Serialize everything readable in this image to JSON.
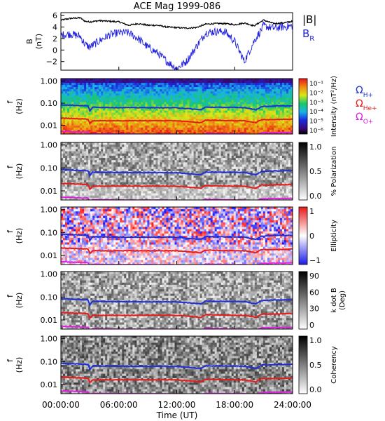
{
  "title": "ACE Mag 1999-086",
  "time_axis": {
    "xlabel": "Time (UT)",
    "ticks": [
      "00:00:00",
      "06:00:00",
      "12:00:00",
      "18:00:00",
      "24:00:00"
    ],
    "range_hours": [
      0,
      24
    ]
  },
  "colors": {
    "B_total": "#000000",
    "B_R": "#2222dd",
    "H_plus": "#1f2fd8",
    "He_plus": "#e81a1a",
    "O_plus": "#e020e0"
  },
  "panels": [
    {
      "id": "b-field",
      "ylabel_main": "B",
      "ylabel_unit": "(nT)",
      "legend": [
        {
          "main": "|B|",
          "sub": "",
          "color": "#000000"
        },
        {
          "main": "B",
          "sub": "R",
          "color": "#2222dd"
        }
      ]
    },
    {
      "id": "intensity",
      "ylabel_main": "f",
      "ylabel_unit": "(Hz)",
      "colorbar_label": "Intensity (nT²/Hz)",
      "colorbar_ticks": [
        "10⁻¹",
        "10⁻²",
        "10⁻³",
        "10⁻⁴",
        "10⁻⁵",
        "10⁻⁶"
      ],
      "legend": [
        {
          "main": "Ω",
          "sub": "H+",
          "color": "#1f2fd8"
        },
        {
          "main": "Ω",
          "sub": "He+",
          "color": "#e81a1a"
        },
        {
          "main": "Ω",
          "sub": "O+",
          "color": "#e020e0"
        }
      ]
    },
    {
      "id": "polarization",
      "ylabel_main": "f",
      "ylabel_unit": "(Hz)",
      "colorbar_label": "% Polarization",
      "colorbar_ticks": [
        "1.0",
        "0.5",
        "0.0"
      ]
    },
    {
      "id": "ellipticity",
      "ylabel_main": "f",
      "ylabel_unit": "(Hz)",
      "colorbar_label": "Ellipticity",
      "colorbar_ticks": [
        "1",
        "0",
        "−1"
      ]
    },
    {
      "id": "kdotb",
      "ylabel_main": "f",
      "ylabel_unit": "(Hz)",
      "colorbar_label": "k dot B",
      "colorbar_label2": "(Deg)",
      "colorbar_ticks": [
        "90",
        "60",
        "30",
        "0"
      ]
    },
    {
      "id": "coherency",
      "ylabel_main": "f",
      "ylabel_unit": "(Hz)",
      "colorbar_label": "Coherency",
      "colorbar_ticks": [
        "1.0",
        "0.5",
        "0.0"
      ]
    }
  ],
  "chart_data": {
    "type": "heatmap",
    "title": "ACE Mag 1999-086",
    "xlabel": "Time (UT)",
    "x_ticks": [
      "00:00:00",
      "06:00:00",
      "12:00:00",
      "18:00:00",
      "24:00:00"
    ],
    "b_panel": {
      "ylabel": "B (nT)",
      "ylim": [
        -3.5,
        6.5
      ],
      "yticks": [
        "6",
        "4",
        "2",
        "0",
        "−2"
      ],
      "series": [
        {
          "name": "|B|",
          "x_hours": [
            0,
            1,
            2,
            2.5,
            3,
            4,
            5,
            6,
            7,
            8,
            9,
            10,
            11,
            12,
            13,
            14,
            15,
            16,
            17,
            18,
            19,
            20,
            21,
            22,
            23,
            24
          ],
          "values": [
            5.2,
            5.5,
            5.6,
            5.0,
            4.9,
            5.1,
            5.0,
            4.9,
            4.3,
            4.6,
            4.3,
            4.3,
            4.0,
            3.9,
            3.8,
            3.9,
            4.5,
            4.6,
            4.6,
            4.4,
            4.7,
            4.2,
            5.2,
            4.6,
            4.7,
            5.0
          ]
        },
        {
          "name": "B_R",
          "x_hours": [
            0,
            1,
            2,
            2.5,
            3,
            4,
            5,
            6,
            7,
            8,
            9,
            10,
            11,
            12,
            13,
            14,
            15,
            16,
            17,
            18,
            19,
            20,
            21,
            22,
            23,
            24
          ],
          "values": [
            2.6,
            2.8,
            2.4,
            1.0,
            0.5,
            1.6,
            2.6,
            3.0,
            3.0,
            2.0,
            0.5,
            -0.5,
            -2.0,
            -3.2,
            -2.0,
            0.5,
            3.0,
            3.2,
            3.2,
            1.5,
            -2.0,
            1.5,
            4.2,
            3.8,
            4.0,
            4.2
          ]
        }
      ]
    },
    "freq_axis": {
      "ylabel": "f (Hz)",
      "scale": "log",
      "ylim": [
        0.004,
        1.3
      ],
      "yticks": [
        "1.00",
        "0.10",
        "0.01"
      ]
    },
    "gyrofrequency_lines": [
      {
        "name": "Ω_H+",
        "x_hours": [
          0,
          2.8,
          3.0,
          3.3,
          6,
          12,
          14.5,
          15,
          18,
          19,
          20.2,
          20.8,
          22,
          24
        ],
        "values": [
          0.085,
          0.075,
          0.045,
          0.065,
          0.063,
          0.062,
          0.05,
          0.066,
          0.064,
          0.063,
          0.05,
          0.07,
          0.074,
          0.076
        ]
      },
      {
        "name": "Ω_He+",
        "x_hours": [
          0,
          2.8,
          3.0,
          3.3,
          6,
          12,
          14.5,
          15,
          18,
          19,
          20.2,
          20.8,
          22,
          24
        ],
        "values": [
          0.021,
          0.019,
          0.012,
          0.016,
          0.016,
          0.016,
          0.013,
          0.017,
          0.016,
          0.016,
          0.013,
          0.018,
          0.018,
          0.019
        ]
      },
      {
        "name": "Ω_O+",
        "x_hours": [
          0,
          2.8,
          3.0,
          3.3,
          6,
          12,
          14.5,
          15,
          18,
          19,
          20.2,
          20.8,
          22,
          24
        ],
        "values": [
          0.0053,
          0.0048,
          0.0036,
          0.0041,
          0.004,
          0.0039,
          0.0036,
          0.0042,
          0.004,
          0.004,
          0.0036,
          0.0045,
          0.0046,
          0.0047
        ]
      }
    ],
    "colorbars": [
      {
        "panel": "Intensity",
        "label": "Intensity (nT²/Hz)",
        "scale": "log",
        "range": [
          1e-06,
          0.1
        ]
      },
      {
        "panel": "Polarization",
        "label": "% Polarization",
        "range": [
          0,
          1
        ]
      },
      {
        "panel": "Ellipticity",
        "label": "Ellipticity",
        "range": [
          -1,
          1
        ]
      },
      {
        "panel": "k dot B",
        "label": "k dot B (Deg)",
        "range": [
          0,
          90
        ]
      },
      {
        "panel": "Coherency",
        "label": "Coherency",
        "range": [
          0,
          1
        ]
      }
    ]
  }
}
